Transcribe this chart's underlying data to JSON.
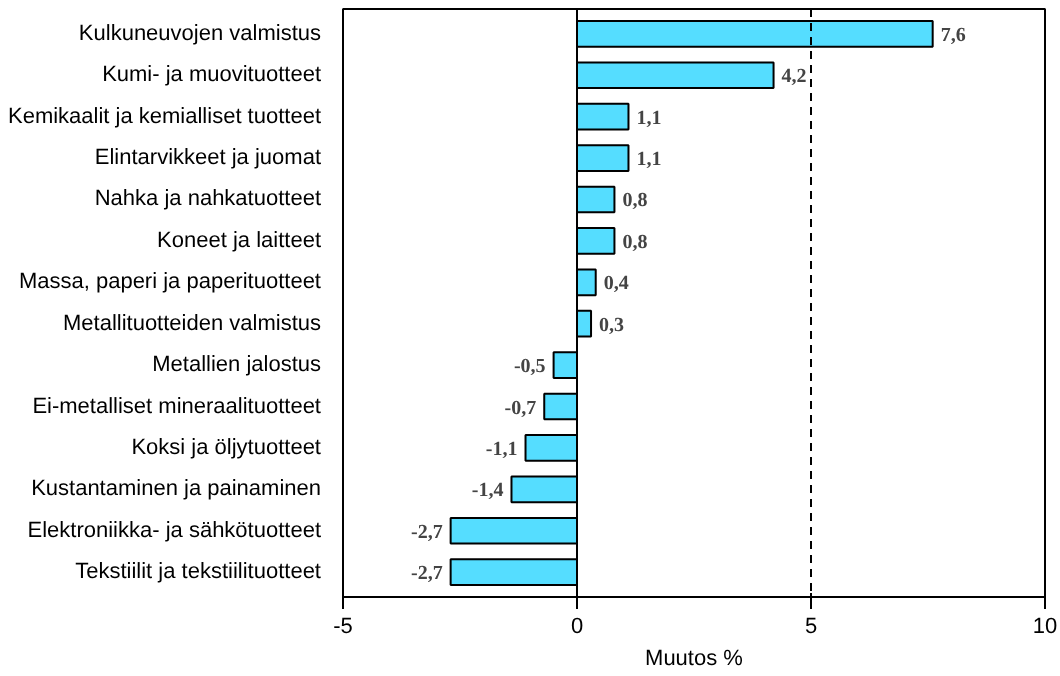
{
  "chart_data": {
    "type": "bar",
    "orientation": "horizontal",
    "xlabel": "Muutos %",
    "categories": [
      "Kulkuneuvojen valmistus",
      "Kumi- ja muovituotteet",
      "Kemikaalit ja kemialliset tuotteet",
      "Elintarvikkeet ja juomat",
      "Nahka ja nahkatuotteet",
      "Koneet ja laitteet",
      "Massa, paperi ja paperituotteet",
      "Metallituotteiden valmistus",
      "Metallien jalostus",
      "Ei-metalliset mineraalituotteet",
      "Koksi ja öljytuotteet",
      "Kustantaminen ja painaminen",
      "Elektroniikka- ja sähkötuotteet",
      "Tekstiilit ja tekstiilituotteet"
    ],
    "values": [
      7.6,
      4.2,
      1.1,
      1.1,
      0.8,
      0.8,
      0.4,
      0.3,
      -0.5,
      -0.7,
      -1.1,
      -1.4,
      -2.7,
      -2.7
    ],
    "value_labels": [
      "7,6",
      "4,2",
      "1,1",
      "1,1",
      "0,8",
      "0,8",
      "0,4",
      "0,3",
      "-0,5",
      "-0,7",
      "-1,1",
      "-1,4",
      "-2,7",
      "-2,7"
    ],
    "color": "#55ddff",
    "xlim": [
      -5,
      10
    ],
    "xticks": [
      -5,
      0,
      5,
      10
    ],
    "ref_lines": [
      {
        "axis": "x",
        "value": 5,
        "line_style": "dashed",
        "color": "#000000"
      }
    ],
    "grid": false
  }
}
